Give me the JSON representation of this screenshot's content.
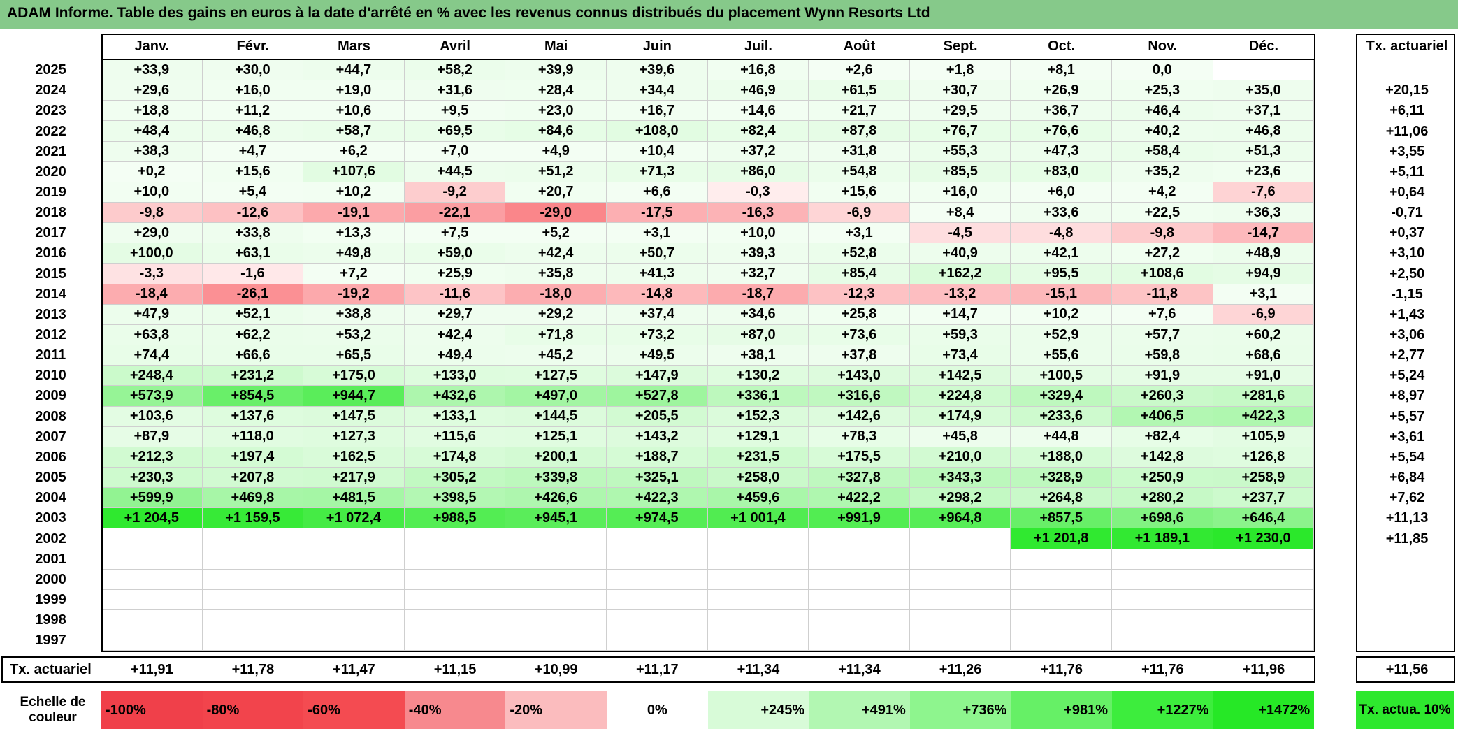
{
  "title": "ADAM Informe. Table des gains en euros à la date d'arrêté en % avec les revenus connus distribués du placement Wynn Resorts Ltd",
  "months": [
    "Janv.",
    "Févr.",
    "Mars",
    "Avril",
    "Mai",
    "Juin",
    "Juil.",
    "Août",
    "Sept.",
    "Oct.",
    "Nov.",
    "Déc."
  ],
  "annual_header": "Tx. actuariel",
  "rows": [
    {
      "year": "2025",
      "values": [
        "+33,9",
        "+30,0",
        "+44,7",
        "+58,2",
        "+39,9",
        "+39,6",
        "+16,8",
        "+2,6",
        "+1,8",
        "+8,1",
        "0,0",
        ""
      ],
      "annual": ""
    },
    {
      "year": "2024",
      "values": [
        "+29,6",
        "+16,0",
        "+19,0",
        "+31,6",
        "+28,4",
        "+34,4",
        "+46,9",
        "+61,5",
        "+30,7",
        "+26,9",
        "+25,3",
        "+35,0"
      ],
      "annual": "+20,15"
    },
    {
      "year": "2023",
      "values": [
        "+18,8",
        "+11,2",
        "+10,6",
        "+9,5",
        "+23,0",
        "+16,7",
        "+14,6",
        "+21,7",
        "+29,5",
        "+36,7",
        "+46,4",
        "+37,1"
      ],
      "annual": "+6,11"
    },
    {
      "year": "2022",
      "values": [
        "+48,4",
        "+46,8",
        "+58,7",
        "+69,5",
        "+84,6",
        "+108,0",
        "+82,4",
        "+87,8",
        "+76,7",
        "+76,6",
        "+40,2",
        "+46,8"
      ],
      "annual": "+11,06"
    },
    {
      "year": "2021",
      "values": [
        "+38,3",
        "+4,7",
        "+6,2",
        "+7,0",
        "+4,9",
        "+10,4",
        "+37,2",
        "+31,8",
        "+55,3",
        "+47,3",
        "+58,4",
        "+51,3"
      ],
      "annual": "+3,55"
    },
    {
      "year": "2020",
      "values": [
        "+0,2",
        "+15,6",
        "+107,6",
        "+44,5",
        "+51,2",
        "+71,3",
        "+86,0",
        "+54,8",
        "+85,5",
        "+83,0",
        "+35,2",
        "+23,6"
      ],
      "annual": "+5,11"
    },
    {
      "year": "2019",
      "values": [
        "+10,0",
        "+5,4",
        "+10,2",
        "-9,2",
        "+20,7",
        "+6,6",
        "-0,3",
        "+15,6",
        "+16,0",
        "+6,0",
        "+4,2",
        "-7,6"
      ],
      "annual": "+0,64"
    },
    {
      "year": "2018",
      "values": [
        "-9,8",
        "-12,6",
        "-19,1",
        "-22,1",
        "-29,0",
        "-17,5",
        "-16,3",
        "-6,9",
        "+8,4",
        "+33,6",
        "+22,5",
        "+36,3"
      ],
      "annual": "-0,71"
    },
    {
      "year": "2017",
      "values": [
        "+29,0",
        "+33,8",
        "+13,3",
        "+7,5",
        "+5,2",
        "+3,1",
        "+10,0",
        "+3,1",
        "-4,5",
        "-4,8",
        "-9,8",
        "-14,7"
      ],
      "annual": "+0,37"
    },
    {
      "year": "2016",
      "values": [
        "+100,0",
        "+63,1",
        "+49,8",
        "+59,0",
        "+42,4",
        "+50,7",
        "+39,3",
        "+52,8",
        "+40,9",
        "+42,1",
        "+27,2",
        "+48,9"
      ],
      "annual": "+3,10"
    },
    {
      "year": "2015",
      "values": [
        "-3,3",
        "-1,6",
        "+7,2",
        "+25,9",
        "+35,8",
        "+41,3",
        "+32,7",
        "+85,4",
        "+162,2",
        "+95,5",
        "+108,6",
        "+94,9"
      ],
      "annual": "+2,50"
    },
    {
      "year": "2014",
      "values": [
        "-18,4",
        "-26,1",
        "-19,2",
        "-11,6",
        "-18,0",
        "-14,8",
        "-18,7",
        "-12,3",
        "-13,2",
        "-15,1",
        "-11,8",
        "+3,1"
      ],
      "annual": "-1,15"
    },
    {
      "year": "2013",
      "values": [
        "+47,9",
        "+52,1",
        "+38,8",
        "+29,7",
        "+29,2",
        "+37,4",
        "+34,6",
        "+25,8",
        "+14,7",
        "+10,2",
        "+7,6",
        "-6,9"
      ],
      "annual": "+1,43"
    },
    {
      "year": "2012",
      "values": [
        "+63,8",
        "+62,2",
        "+53,2",
        "+42,4",
        "+71,8",
        "+73,2",
        "+87,0",
        "+73,6",
        "+59,3",
        "+52,9",
        "+57,7",
        "+60,2"
      ],
      "annual": "+3,06"
    },
    {
      "year": "2011",
      "values": [
        "+74,4",
        "+66,6",
        "+65,5",
        "+49,4",
        "+45,2",
        "+49,5",
        "+38,1",
        "+37,8",
        "+73,4",
        "+55,6",
        "+59,8",
        "+68,6"
      ],
      "annual": "+2,77"
    },
    {
      "year": "2010",
      "values": [
        "+248,4",
        "+231,2",
        "+175,0",
        "+133,0",
        "+127,5",
        "+147,9",
        "+130,2",
        "+143,0",
        "+142,5",
        "+100,5",
        "+91,9",
        "+91,0"
      ],
      "annual": "+5,24"
    },
    {
      "year": "2009",
      "values": [
        "+573,9",
        "+854,5",
        "+944,7",
        "+432,6",
        "+497,0",
        "+527,8",
        "+336,1",
        "+316,6",
        "+224,8",
        "+329,4",
        "+260,3",
        "+281,6"
      ],
      "annual": "+8,97"
    },
    {
      "year": "2008",
      "values": [
        "+103,6",
        "+137,6",
        "+147,5",
        "+133,1",
        "+144,5",
        "+205,5",
        "+152,3",
        "+142,6",
        "+174,9",
        "+233,6",
        "+406,5",
        "+422,3"
      ],
      "annual": "+5,57"
    },
    {
      "year": "2007",
      "values": [
        "+87,9",
        "+118,0",
        "+127,3",
        "+115,6",
        "+125,1",
        "+143,2",
        "+129,1",
        "+78,3",
        "+45,8",
        "+44,8",
        "+82,4",
        "+105,9"
      ],
      "annual": "+3,61"
    },
    {
      "year": "2006",
      "values": [
        "+212,3",
        "+197,4",
        "+162,5",
        "+174,8",
        "+200,1",
        "+188,7",
        "+231,5",
        "+175,5",
        "+210,0",
        "+188,0",
        "+142,8",
        "+126,8"
      ],
      "annual": "+5,54"
    },
    {
      "year": "2005",
      "values": [
        "+230,3",
        "+207,8",
        "+217,9",
        "+305,2",
        "+339,8",
        "+325,1",
        "+258,0",
        "+327,8",
        "+343,3",
        "+328,9",
        "+250,9",
        "+258,9"
      ],
      "annual": "+6,84"
    },
    {
      "year": "2004",
      "values": [
        "+599,9",
        "+469,8",
        "+481,5",
        "+398,5",
        "+426,6",
        "+422,3",
        "+459,6",
        "+422,2",
        "+298,2",
        "+264,8",
        "+280,2",
        "+237,7"
      ],
      "annual": "+7,62"
    },
    {
      "year": "2003",
      "values": [
        "+1 204,5",
        "+1 159,5",
        "+1 072,4",
        "+988,5",
        "+945,1",
        "+974,5",
        "+1 001,4",
        "+991,9",
        "+964,8",
        "+857,5",
        "+698,6",
        "+646,4"
      ],
      "annual": "+11,13"
    },
    {
      "year": "2002",
      "values": [
        "",
        "",
        "",
        "",
        "",
        "",
        "",
        "",
        "",
        "+1 201,8",
        "+1 189,1",
        "+1 230,0"
      ],
      "annual": "+11,85"
    },
    {
      "year": "2001",
      "values": [
        "",
        "",
        "",
        "",
        "",
        "",
        "",
        "",
        "",
        "",
        "",
        ""
      ],
      "annual": ""
    },
    {
      "year": "2000",
      "values": [
        "",
        "",
        "",
        "",
        "",
        "",
        "",
        "",
        "",
        "",
        "",
        ""
      ],
      "annual": ""
    },
    {
      "year": "1999",
      "values": [
        "",
        "",
        "",
        "",
        "",
        "",
        "",
        "",
        "",
        "",
        "",
        ""
      ],
      "annual": ""
    },
    {
      "year": "1998",
      "values": [
        "",
        "",
        "",
        "",
        "",
        "",
        "",
        "",
        "",
        "",
        "",
        ""
      ],
      "annual": ""
    },
    {
      "year": "1997",
      "values": [
        "",
        "",
        "",
        "",
        "",
        "",
        "",
        "",
        "",
        "",
        "",
        ""
      ],
      "annual": ""
    }
  ],
  "footer": {
    "label": "Tx. actuariel",
    "values": [
      "+11,91",
      "+11,78",
      "+11,47",
      "+11,15",
      "+10,99",
      "+11,17",
      "+11,34",
      "+11,34",
      "+11,26",
      "+11,76",
      "+11,76",
      "+11,96"
    ],
    "annual": "+11,56"
  },
  "scale": {
    "label": "Echelle de couleur",
    "items": [
      {
        "text": "-100%",
        "color": "#f0404a"
      },
      {
        "text": "-80%",
        "color": "#f2444c"
      },
      {
        "text": "-60%",
        "color": "#f44b51"
      },
      {
        "text": "-40%",
        "color": "#f7898e"
      },
      {
        "text": "-20%",
        "color": "#fbbcbe"
      },
      {
        "text": "0%",
        "color": "#ffffff"
      },
      {
        "text": "+245%",
        "color": "#d8fbd8"
      },
      {
        "text": "+491%",
        "color": "#b2f7b2"
      },
      {
        "text": "+736%",
        "color": "#8ef58e"
      },
      {
        "text": "+981%",
        "color": "#66f066"
      },
      {
        "text": "+1227%",
        "color": "#3ded3d"
      },
      {
        "text": "+1472%",
        "color": "#26e826"
      }
    ],
    "annual_label": "Tx. actua. 10%",
    "annual_color": "#2ee82e"
  }
}
